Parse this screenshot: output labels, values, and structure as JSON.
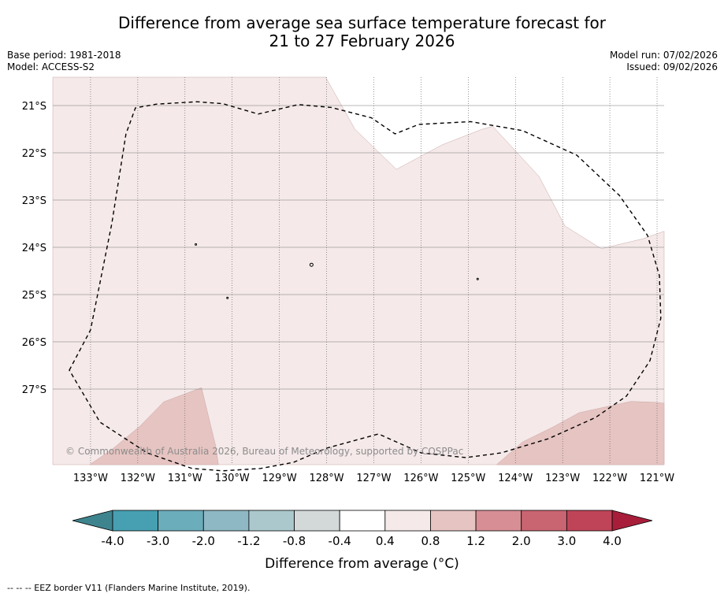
{
  "title": {
    "line1": "Difference from average sea surface temperature forecast for",
    "line2": "21 to 27 February 2026"
  },
  "meta": {
    "base_period": "Base period: 1981-2018",
    "model": "Model: ACCESS-S2",
    "model_run": "Model run: 07/02/2026",
    "issued": "Issued: 09/02/2026"
  },
  "map": {
    "lon_range": [
      -133.8,
      -120.85
    ],
    "lat_range": [
      -28.6,
      -20.4
    ],
    "lon_ticks": [
      {
        "value": -133,
        "label": "133°W"
      },
      {
        "value": -132,
        "label": "132°W"
      },
      {
        "value": -131,
        "label": "131°W"
      },
      {
        "value": -130,
        "label": "130°W"
      },
      {
        "value": -129,
        "label": "129°W"
      },
      {
        "value": -128,
        "label": "128°W"
      },
      {
        "value": -127,
        "label": "127°W"
      },
      {
        "value": -126,
        "label": "126°W"
      },
      {
        "value": -125,
        "label": "125°W"
      },
      {
        "value": -124,
        "label": "124°W"
      },
      {
        "value": -123,
        "label": "123°W"
      },
      {
        "value": -122,
        "label": "122°W"
      },
      {
        "value": -121,
        "label": "121°W"
      }
    ],
    "lat_ticks": [
      {
        "value": -21,
        "label": "21°S"
      },
      {
        "value": -22,
        "label": "22°S"
      },
      {
        "value": -23,
        "label": "23°S"
      },
      {
        "value": -24,
        "label": "24°S"
      },
      {
        "value": -25,
        "label": "25°S"
      },
      {
        "value": -26,
        "label": "26°S"
      },
      {
        "value": -27,
        "label": "27°S"
      }
    ],
    "copyright": "© Commonwealth of Australia 2026, Bureau of Meteorology, supported by COSPPac",
    "colors": {
      "anomaly_0_4_to_0_8": "#f5e9e9",
      "anomaly_0_8_to_1_2": "#e6c4c1",
      "neutral": "#ffffff"
    },
    "regions": [
      {
        "name": "main-anomaly-region",
        "class": "0.4 to 0.8",
        "points": [
          [
            -133.8,
            -20.4
          ],
          [
            -128.02,
            -20.4
          ],
          [
            -127.4,
            -21.5
          ],
          [
            -126.52,
            -22.35
          ],
          [
            -125.55,
            -21.83
          ],
          [
            -124.7,
            -21.5
          ],
          [
            -124.48,
            -21.44
          ],
          [
            -123.5,
            -22.5
          ],
          [
            -122.95,
            -23.55
          ],
          [
            -122.18,
            -24.03
          ],
          [
            -121.3,
            -23.82
          ],
          [
            -120.85,
            -23.66
          ],
          [
            -120.85,
            -28.6
          ],
          [
            -133.8,
            -28.6
          ]
        ]
      },
      {
        "name": "southwest-warm-region",
        "class": "0.8 to 1.2",
        "points": [
          [
            -133.02,
            -28.6
          ],
          [
            -132.55,
            -28.28
          ],
          [
            -131.95,
            -27.78
          ],
          [
            -131.45,
            -27.27
          ],
          [
            -130.65,
            -26.97
          ],
          [
            -130.35,
            -28.2
          ],
          [
            -130.29,
            -28.6
          ]
        ]
      },
      {
        "name": "southeast-warm-region",
        "class": "0.8 to 1.2",
        "points": [
          [
            -124.4,
            -28.6
          ],
          [
            -123.85,
            -28.12
          ],
          [
            -123.2,
            -27.8
          ],
          [
            -122.65,
            -27.5
          ],
          [
            -121.55,
            -27.26
          ],
          [
            -121.05,
            -27.28
          ],
          [
            -120.85,
            -27.3
          ],
          [
            -120.85,
            -28.6
          ]
        ]
      }
    ],
    "eez_border": [
      [
        -133.45,
        -26.6
      ],
      [
        -133.0,
        -25.75
      ],
      [
        -132.55,
        -23.5
      ],
      [
        -132.25,
        -21.6
      ],
      [
        -132.05,
        -21.05
      ],
      [
        -131.6,
        -20.97
      ],
      [
        -130.75,
        -20.92
      ],
      [
        -130.2,
        -20.96
      ],
      [
        -129.45,
        -21.18
      ],
      [
        -128.6,
        -20.98
      ],
      [
        -127.9,
        -21.04
      ],
      [
        -127.05,
        -21.26
      ],
      [
        -126.55,
        -21.6
      ],
      [
        -126.05,
        -21.4
      ],
      [
        -124.95,
        -21.34
      ],
      [
        -123.85,
        -21.53
      ],
      [
        -122.7,
        -22.05
      ],
      [
        -121.8,
        -22.9
      ],
      [
        -121.2,
        -23.75
      ],
      [
        -120.95,
        -24.6
      ],
      [
        -120.92,
        -25.5
      ],
      [
        -121.15,
        -26.4
      ],
      [
        -121.65,
        -27.15
      ],
      [
        -122.3,
        -27.6
      ],
      [
        -123.3,
        -28.05
      ],
      [
        -124.3,
        -28.35
      ],
      [
        -125.05,
        -28.45
      ],
      [
        -126.0,
        -28.35
      ],
      [
        -126.9,
        -27.95
      ],
      [
        -128.0,
        -28.25
      ],
      [
        -128.7,
        -28.55
      ],
      [
        -129.4,
        -28.68
      ],
      [
        -130.2,
        -28.73
      ],
      [
        -130.85,
        -28.68
      ],
      [
        -131.8,
        -28.35
      ],
      [
        -132.8,
        -27.7
      ],
      [
        -133.45,
        -26.6
      ]
    ],
    "islands": [
      {
        "name": "island-a",
        "lon": -130.77,
        "lat": -23.94
      },
      {
        "name": "island-b",
        "lon": -128.32,
        "lat": -24.37
      },
      {
        "name": "island-c",
        "lon": -124.8,
        "lat": -24.67
      },
      {
        "name": "island-d",
        "lon": -130.1,
        "lat": -25.07
      }
    ]
  },
  "colorbar": {
    "label": "Difference from average (",
    "label_unit": "°C)",
    "ticks": [
      "-4.0",
      "-3.0",
      "-2.0",
      "-1.2",
      "-0.8",
      "-0.4",
      "0.4",
      "0.8",
      "1.2",
      "2.0",
      "3.0",
      "4.0"
    ],
    "low_extend_color": "#3e848e",
    "high_extend_color": "#a81e3a",
    "colors": [
      "#46a0b2",
      "#6cadbb",
      "#8eb8c3",
      "#abc8cd",
      "#d3d8d8",
      "#ffffff",
      "#f5e9e9",
      "#e6c4c1",
      "#d78e94",
      "#c96471",
      "#bf4458"
    ]
  },
  "footnote": "--  --  -- EEZ border V11 (Flanders Marine Institute, 2019)."
}
